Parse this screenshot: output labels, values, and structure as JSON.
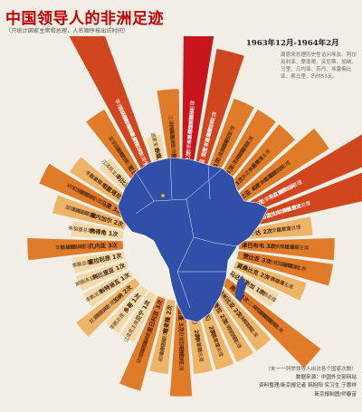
{
  "title": "中国领导人的非洲足迹",
  "subtitle": "（只统计国家主席和总理，人名顺序按出访时间）",
  "note": {
    "date": "1963年12月-1964年2月",
    "text": "周恩来总理历史性访问埃及、阿尔及利亚、摩洛哥、突尼斯、加纳、马里、几内亚、苏丹、埃塞俄比亚、索马里，历时53天。"
  },
  "credits": {
    "note": "（末一一列举领导人出访各个国家次数）",
    "source": "数据来源：中国外交部网站",
    "editor": "资料整理/新京报记者 韩旭阳 实习生 于惠祥",
    "design": "新京报制图/师春苗"
  },
  "colors": {
    "highlight": "#c8141b",
    "africa": "#2f4fa8",
    "scale": [
      "#f4d9a8",
      "#eeb468",
      "#e07b2a",
      "#d0471f",
      "#c8141b"
    ]
  },
  "chart_data": {
    "type": "radial-bar",
    "unit": "次",
    "segments": [
      {
        "country": "埃及",
        "visits": 12,
        "leaders": [
          "周恩来总理",
          "李鹏总理",
          "李先念主席",
          "杨尚昆主席",
          "朱镕基总理"
        ]
      },
      {
        "country": "阿尔及利亚",
        "visits": 5,
        "leaders": [
          "周恩来总理",
          "李鹏总理",
          "江泽民主席",
          "胡锦涛主席"
        ]
      },
      {
        "country": "突尼斯",
        "visits": 3,
        "leaders": [
          "周恩来总理",
          "赵紫阳总理",
          "温家宝总理"
        ]
      },
      {
        "country": "摩洛哥",
        "visits": 3,
        "leaders": [
          "周恩来总理",
          "赵紫阳总理",
          "胡锦涛主席"
        ]
      },
      {
        "country": "苏丹",
        "visits": 3,
        "leaders": [
          "周恩来总理",
          "李鹏总理",
          "胡锦涛主席"
        ]
      },
      {
        "country": "埃塞俄比亚",
        "visits": 4,
        "leaders": [
          "周恩来总理",
          "李鹏总理",
          "江泽民主席",
          "温家宝总理"
        ]
      },
      {
        "country": "肯尼亚",
        "visits": 6,
        "leaders": [
          "赵紫阳总理",
          "李鹏总理",
          "江泽民主席",
          "朱镕基总理"
        ]
      },
      {
        "country": "坦桑尼亚",
        "visits": 5,
        "leaders": [
          "周恩来总理",
          "赵紫阳总理",
          "李鹏总理",
          "温家宝总理"
        ]
      },
      {
        "country": "乌干达",
        "visits": 2,
        "leaders": [
          "李鹏总理",
          "温家宝总理"
        ]
      },
      {
        "country": "津巴布韦",
        "visits": 3,
        "leaders": [
          "赵紫阳总理",
          "李鹏总理",
          "江泽民主席"
        ]
      },
      {
        "country": "赞比亚",
        "visits": 3,
        "leaders": [
          "赵紫阳总理",
          "江泽民主席",
          "胡锦涛主席"
        ]
      },
      {
        "country": "莫桑比克",
        "visits": 2,
        "leaders": [
          "李鹏总理",
          "胡锦涛主席"
        ]
      },
      {
        "country": "马达加斯加",
        "visits": 1,
        "leaders": [
          "李鹏总理"
        ]
      },
      {
        "country": "南非",
        "visits": 4,
        "leaders": [
          "江泽民主席",
          "朱镕基总理",
          "温家宝总理",
          "胡锦涛主席"
        ]
      },
      {
        "country": "纳米比亚",
        "visits": 2,
        "leaders": [
          "江泽民主席",
          "胡锦涛主席"
        ]
      },
      {
        "country": "安哥拉",
        "visits": 2,
        "leaders": [
          "温家宝总理",
          "李克强总理"
        ]
      },
      {
        "country": "刚果（布）",
        "visits": 2,
        "leaders": [
          "李鹏总理",
          "温家宝总理"
        ]
      },
      {
        "country": "刚果（金）",
        "visits": 2,
        "leaders": [
          "李鹏总理",
          "赵紫阳总理"
        ]
      },
      {
        "country": "加蓬",
        "visits": 3,
        "leaders": [
          "赵紫阳总理",
          "江泽民主席",
          "胡锦涛主席"
        ]
      },
      {
        "country": "喀麦隆",
        "visits": 2,
        "leaders": [
          "赵紫阳总理",
          "胡锦涛主席"
        ]
      },
      {
        "country": "尼日利亚",
        "visits": 3,
        "leaders": [
          "江泽民主席",
          "温家宝总理",
          "胡锦涛主席"
        ]
      },
      {
        "country": "贝宁",
        "visits": 1,
        "leaders": [
          "江泽民主席"
        ]
      },
      {
        "country": "多哥",
        "visits": 1,
        "leaders": [
          "李鹏总理"
        ]
      },
      {
        "country": "加纳",
        "visits": 2,
        "leaders": [
          "周恩来总理",
          "赵紫阳总理"
        ]
      },
      {
        "country": "科特迪瓦",
        "visits": 1,
        "leaders": [
          "李鹏总理"
        ]
      },
      {
        "country": "利比里亚",
        "visits": 1,
        "leaders": [
          "胡锦涛主席"
        ]
      },
      {
        "country": "塞拉利昂",
        "visits": 1,
        "leaders": [
          "李鹏总理"
        ]
      },
      {
        "country": "几内亚",
        "visits": 3,
        "leaders": [
          "周恩来总理",
          "赵紫阳总理",
          "李鹏总理"
        ]
      },
      {
        "country": "佛得角",
        "visits": 1,
        "leaders": [
          "朱镕基总理"
        ]
      },
      {
        "country": "塞内加尔",
        "visits": 2,
        "leaders": [
          "赵紫阳总理",
          "胡锦涛主席"
        ]
      },
      {
        "country": "马里",
        "visits": 3,
        "leaders": [
          "周恩来总理",
          "江泽民主席",
          "胡锦涛主席"
        ]
      },
      {
        "country": "毛里塔尼亚",
        "visits": 2,
        "leaders": [
          "赵紫阳总理",
          "李鹏总理"
        ]
      },
      {
        "country": "利比亚",
        "visits": 1,
        "leaders": [
          "江泽民主席"
        ]
      },
      {
        "country": "尼日尔",
        "visits": 3,
        "leaders": [
          "赵紫阳总理",
          "江泽民主席",
          "温家宝总理"
        ]
      },
      {
        "country": "乍得",
        "visits": 7,
        "leaders": [
          "周恩来总理",
          "赵紫阳总理",
          "李鹏总理",
          "江泽民主席",
          "胡锦涛主席",
          "温家宝总理",
          "李克强总理"
        ]
      },
      {
        "country": "赤道几内亚",
        "visits": 1,
        "leaders": [
          "温家宝总理"
        ]
      },
      {
        "country": "刚果",
        "visits": 3,
        "leaders": [
          "周恩来总理",
          "赵紫阳总理",
          "江泽民主席"
        ]
      }
    ]
  }
}
